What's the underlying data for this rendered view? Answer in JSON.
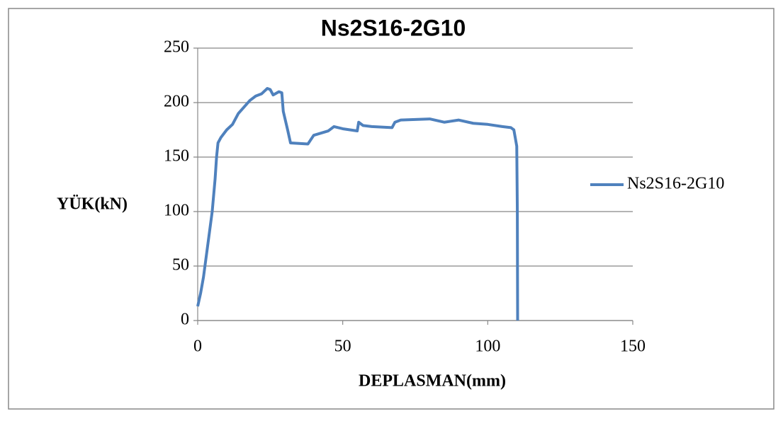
{
  "chart_data": {
    "type": "line",
    "title": "Ns2S16-2G10",
    "x_label": "DEPLASMAN(mm)",
    "y_label": "YÜK(kN)",
    "x": [
      0,
      1,
      2,
      3,
      4,
      5,
      6,
      6.5,
      7,
      8,
      10,
      12,
      14,
      16,
      18,
      20,
      22,
      24,
      25,
      26,
      28,
      29,
      29.5,
      31,
      32,
      38,
      40,
      45,
      47,
      50,
      55,
      55.5,
      57,
      60,
      67,
      68,
      70,
      80,
      85,
      90,
      95,
      100,
      105,
      108,
      109,
      110,
      110.2,
      110.3
    ],
    "series": [
      {
        "name": "Ns2S16-2G10",
        "color": "#4f81bd",
        "values": [
          13,
          25,
          40,
          60,
          80,
          100,
          130,
          150,
          163,
          168,
          175,
          180,
          190,
          196,
          202,
          206,
          208,
          213,
          212,
          207,
          210,
          209,
          192,
          175,
          163,
          162,
          170,
          174,
          178,
          176,
          174,
          182,
          179,
          178,
          177,
          182,
          184,
          185,
          182,
          184,
          181,
          180,
          178,
          177,
          175,
          160,
          100,
          0
        ]
      }
    ],
    "xlim": [
      0,
      150
    ],
    "xticks": [
      0,
      50,
      100,
      150
    ],
    "ylim": [
      0,
      250
    ],
    "yticks": [
      0,
      50,
      100,
      150,
      200,
      250
    ],
    "grid": true,
    "legend": "right"
  }
}
